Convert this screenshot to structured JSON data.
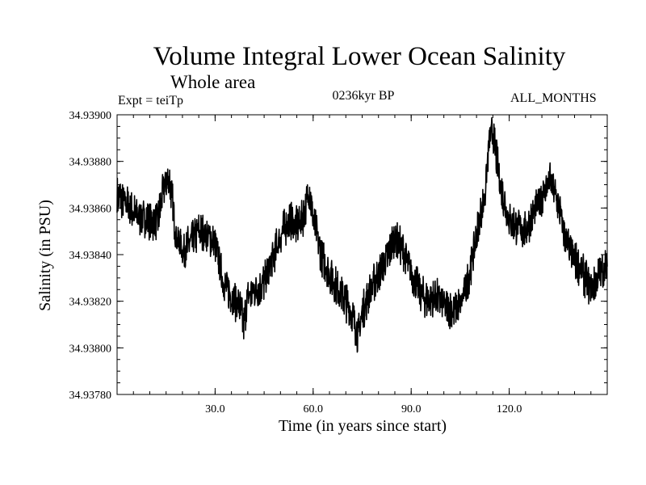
{
  "chart_data": {
    "type": "line",
    "title": "Volume Integral Lower Ocean Salinity",
    "subtitle": "Whole area",
    "annotations": {
      "left": "Expt = teiTp",
      "center": "0236kyr BP",
      "right": "ALL_MONTHS"
    },
    "xlabel": "Time (in years since start)",
    "ylabel": "Salinity (in PSU)",
    "xlim": [
      0,
      150
    ],
    "ylim": [
      34.9378,
      34.939
    ],
    "x_ticks": [
      30,
      60,
      90,
      120
    ],
    "x_tick_labels": [
      "30.0",
      "60.0",
      "90.0",
      "120.0"
    ],
    "y_ticks": [
      34.9378,
      34.938,
      34.9382,
      34.9384,
      34.9386,
      34.9388,
      34.939
    ],
    "y_tick_labels": [
      "34.93780",
      "34.93800",
      "34.93820",
      "34.93840",
      "34.93860",
      "34.93880",
      "34.93900"
    ],
    "grid": false,
    "series": [
      {
        "name": "Salinity",
        "x": [
          0,
          2.5,
          5,
          7.5,
          10,
          12.5,
          14.5,
          16,
          17,
          18,
          20,
          22.5,
          25,
          27.5,
          30,
          32.5,
          35,
          37.5,
          38.7,
          40,
          42.5,
          45,
          47.5,
          50,
          52.5,
          55,
          57.5,
          58.8,
          60,
          62.5,
          65,
          67.5,
          70,
          72.5,
          73.8,
          75,
          77.5,
          80,
          82.5,
          85,
          87.5,
          90,
          92.5,
          95,
          97.5,
          100,
          102.5,
          105,
          107.5,
          110,
          112.5,
          114,
          115,
          117.5,
          120,
          122.5,
          125,
          127.5,
          130,
          132.5,
          135,
          137.5,
          140,
          142.5,
          145,
          147.5,
          150
        ],
        "values": [
          34.93865,
          34.93862,
          34.93858,
          34.93856,
          34.93854,
          34.93855,
          34.9387,
          34.93872,
          34.93862,
          34.93848,
          34.93842,
          34.93845,
          34.9385,
          34.93848,
          34.93845,
          34.93828,
          34.93822,
          34.93818,
          34.9381,
          34.93822,
          34.93825,
          34.93828,
          34.93838,
          34.93848,
          34.93855,
          34.93852,
          34.93858,
          34.93868,
          34.93855,
          34.9384,
          34.93832,
          34.93825,
          34.9382,
          34.93812,
          34.93805,
          34.93815,
          34.93825,
          34.93832,
          34.93838,
          34.93848,
          34.93842,
          34.93832,
          34.93825,
          34.9382,
          34.93822,
          34.93818,
          34.93816,
          34.93818,
          34.9383,
          34.93848,
          34.93865,
          34.9389,
          34.93892,
          34.93868,
          34.93855,
          34.93852,
          34.9385,
          34.93858,
          34.93865,
          34.93872,
          34.93862,
          34.93845,
          34.93838,
          34.93832,
          34.93825,
          34.93832,
          34.93835
        ]
      }
    ]
  }
}
